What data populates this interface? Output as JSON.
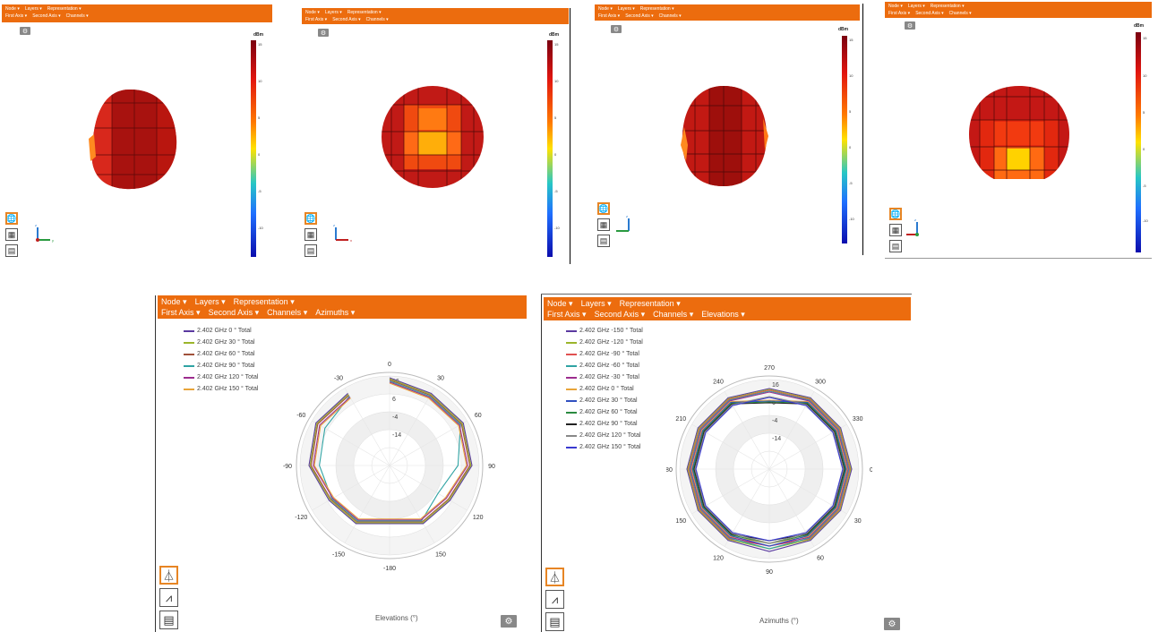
{
  "menu": {
    "node": "Node",
    "layers": "Layers",
    "representation": "Representation",
    "first_axis": "First Axis",
    "second_axis": "Second Axis",
    "channels": "Channels",
    "azimuths": "Azimuths",
    "elevations": "Elevations",
    "caret": "▾"
  },
  "colorbar": {
    "unit": "dBm",
    "ticks_a": [
      "15",
      "10",
      "5",
      "0",
      "-5",
      "-10"
    ],
    "ticks_b": [
      "15",
      "10",
      "5",
      "0",
      "-5",
      "-10"
    ]
  },
  "colors": {
    "accent": "#ec6c0e",
    "active_border": "#e78524"
  },
  "icons": {
    "settings": "gear-icon",
    "globe": "globe-icon",
    "image": "image-icon",
    "table": "table-icon",
    "antenna": "antenna-icon",
    "chart": "chart-icon"
  },
  "axis_letters": {
    "z": "z",
    "x": "x",
    "y": "y"
  },
  "elevation_chart": {
    "xlabel": "Elevations (°)",
    "legend": [
      {
        "name": "2.402 GHz 0 ° Total",
        "color": "#5b3aa0"
      },
      {
        "name": "2.402 GHz 30 ° Total",
        "color": "#9bb52b"
      },
      {
        "name": "2.402 GHz 60 ° Total",
        "color": "#a0503a"
      },
      {
        "name": "2.402 GHz 90 ° Total",
        "color": "#2fa3a3"
      },
      {
        "name": "2.402 GHz 120 ° Total",
        "color": "#9c2d8e"
      },
      {
        "name": "2.402 GHz 150 ° Total",
        "color": "#e8a43a"
      }
    ],
    "angle_labels": [
      "0",
      "30",
      "60",
      "90",
      "120",
      "150",
      "-180",
      "-150",
      "-120",
      "-90",
      "-60",
      "-30"
    ],
    "radial_labels": [
      "16",
      "6",
      "-4",
      "-14"
    ]
  },
  "azimuth_chart": {
    "xlabel": "Azimuths (°)",
    "legend": [
      {
        "name": "2.402 GHz -150 ° Total",
        "color": "#5b3aa0"
      },
      {
        "name": "2.402 GHz -120 ° Total",
        "color": "#9bb52b"
      },
      {
        "name": "2.402 GHz -90 ° Total",
        "color": "#e05050"
      },
      {
        "name": "2.402 GHz -60 ° Total",
        "color": "#2fa3a3"
      },
      {
        "name": "2.402 GHz -30 ° Total",
        "color": "#9c2d8e"
      },
      {
        "name": "2.402 GHz 0 ° Total",
        "color": "#e8a43a"
      },
      {
        "name": "2.402 GHz 30 ° Total",
        "color": "#3050c0"
      },
      {
        "name": "2.402 GHz 60 ° Total",
        "color": "#2a8a40"
      },
      {
        "name": "2.402 GHz 90 ° Total",
        "color": "#222222"
      },
      {
        "name": "2.402 GHz 120 ° Total",
        "color": "#888888"
      },
      {
        "name": "2.402 GHz 150 ° Total",
        "color": "#3a3ad0"
      }
    ],
    "angle_labels": [
      "270",
      "300",
      "330",
      "0",
      "30",
      "60",
      "90",
      "120",
      "150",
      "180",
      "210",
      "240"
    ],
    "radial_labels": [
      "16",
      "6",
      "-4",
      "-14"
    ]
  }
}
